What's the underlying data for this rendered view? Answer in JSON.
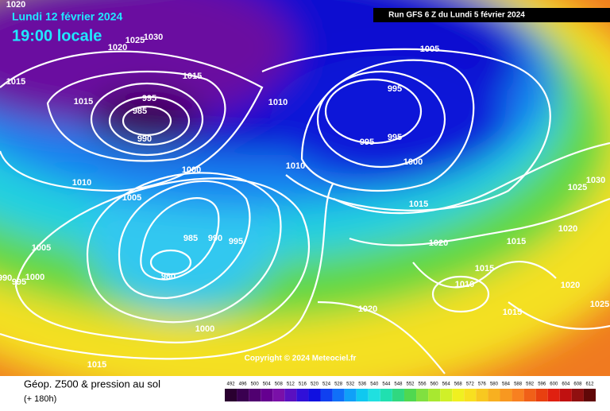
{
  "header": {
    "date": "Lundi 12 février 2024",
    "time": "19:00 locale",
    "run": "Run GFS 6 Z du Lundi 5 février 2024"
  },
  "isobar_labels": [
    1020,
    1025,
    1030,
    1020,
    1015,
    1015,
    1015,
    995,
    985,
    990,
    1010,
    1005,
    995,
    995,
    995,
    1000,
    1010,
    1000,
    1010,
    1005,
    1015,
    1025,
    1030,
    1020,
    1015,
    1020,
    985,
    990,
    995,
    980,
    1005,
    1000,
    990,
    995,
    1015,
    1010,
    1020,
    1025,
    1020,
    1015,
    1000,
    1015
  ],
  "copyright": "Copyright © 2024 Meteociel.fr",
  "footer": {
    "title": "Géop. Z500 & pression au sol",
    "lead": "(+ 180h)"
  },
  "legend": {
    "labels": [
      492,
      496,
      500,
      504,
      508,
      512,
      516,
      520,
      524,
      528,
      532,
      536,
      540,
      544,
      548,
      552,
      556,
      560,
      564,
      568,
      572,
      576,
      580,
      584,
      588,
      592,
      596,
      600,
      604,
      608,
      612
    ],
    "colors": [
      "#2a0030",
      "#3a0050",
      "#500070",
      "#650090",
      "#7a10a8",
      "#5a10c0",
      "#3010d8",
      "#1010e0",
      "#1040f0",
      "#1070f8",
      "#10a0f8",
      "#10c8f0",
      "#20e0e0",
      "#20e0b0",
      "#30d880",
      "#50d850",
      "#80e040",
      "#a8e830",
      "#d0f028",
      "#f0f020",
      "#f8e020",
      "#f8c820",
      "#f8b020",
      "#f89820",
      "#f88020",
      "#f06018",
      "#e84010",
      "#e02010",
      "#c01010",
      "#901010",
      "#600808"
    ]
  }
}
